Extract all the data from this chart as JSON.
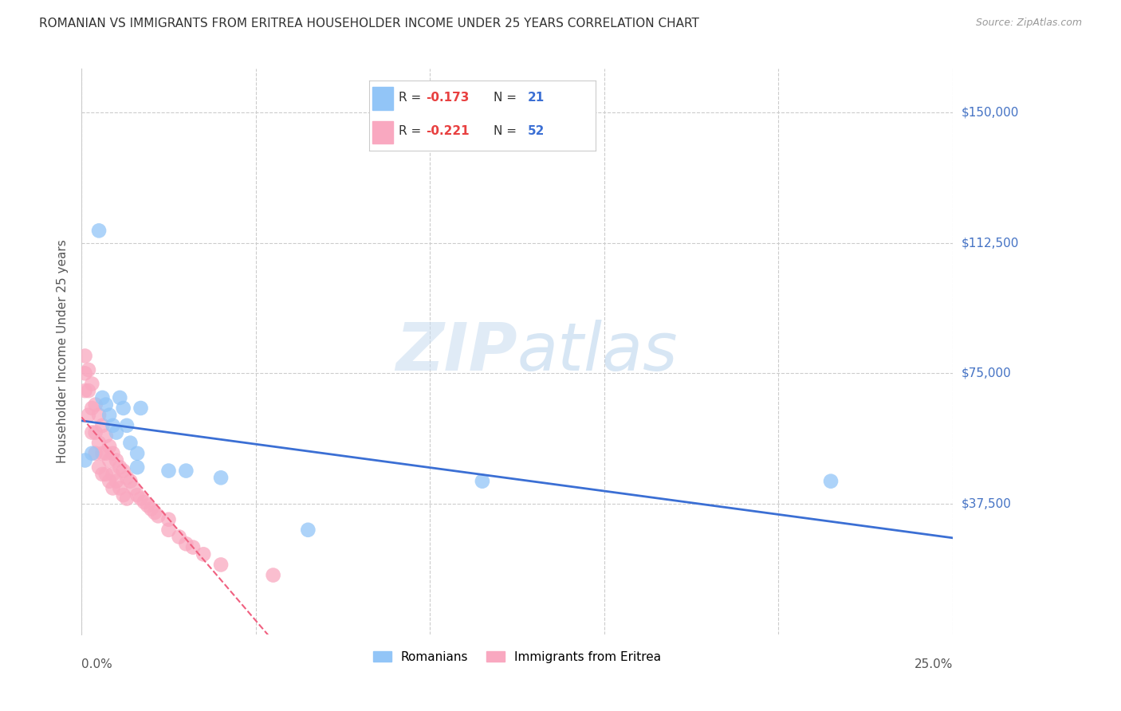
{
  "title": "ROMANIAN VS IMMIGRANTS FROM ERITREA HOUSEHOLDER INCOME UNDER 25 YEARS CORRELATION CHART",
  "source": "Source: ZipAtlas.com",
  "ylabel": "Householder Income Under 25 years",
  "ytick_labels": [
    "$150,000",
    "$112,500",
    "$75,000",
    "$37,500"
  ],
  "ytick_values": [
    150000,
    112500,
    75000,
    37500
  ],
  "ylim": [
    0,
    162500
  ],
  "xlim": [
    0.0,
    0.25
  ],
  "legend_label_romanian": "Romanians",
  "legend_label_eritrea": "Immigrants from Eritrea",
  "color_romanian": "#92C5F7",
  "color_eritrea": "#F9A8C0",
  "color_trendline_romanian": "#3B6FD4",
  "color_trendline_eritrea": "#F06080",
  "background_color": "#FFFFFF",
  "romanian_x": [
    0.001,
    0.003,
    0.005,
    0.006,
    0.007,
    0.008,
    0.009,
    0.01,
    0.011,
    0.012,
    0.013,
    0.014,
    0.016,
    0.016,
    0.017,
    0.025,
    0.03,
    0.04,
    0.065,
    0.115,
    0.215
  ],
  "romanian_y": [
    50000,
    52000,
    116000,
    68000,
    66000,
    63000,
    60000,
    58000,
    68000,
    65000,
    60000,
    55000,
    52000,
    48000,
    65000,
    47000,
    47000,
    45000,
    30000,
    44000,
    44000
  ],
  "eritrea_x": [
    0.001,
    0.001,
    0.001,
    0.002,
    0.002,
    0.002,
    0.003,
    0.003,
    0.003,
    0.004,
    0.004,
    0.004,
    0.005,
    0.005,
    0.005,
    0.006,
    0.006,
    0.006,
    0.007,
    0.007,
    0.007,
    0.008,
    0.008,
    0.008,
    0.009,
    0.009,
    0.009,
    0.01,
    0.01,
    0.011,
    0.011,
    0.012,
    0.012,
    0.013,
    0.013,
    0.014,
    0.015,
    0.016,
    0.017,
    0.018,
    0.019,
    0.02,
    0.021,
    0.022,
    0.025,
    0.025,
    0.028,
    0.03,
    0.032,
    0.035,
    0.04,
    0.055
  ],
  "eritrea_y": [
    80000,
    75000,
    70000,
    76000,
    70000,
    63000,
    72000,
    65000,
    58000,
    66000,
    58000,
    52000,
    63000,
    55000,
    48000,
    60000,
    52000,
    46000,
    57000,
    52000,
    46000,
    54000,
    50000,
    44000,
    52000,
    46000,
    42000,
    50000,
    44000,
    48000,
    42000,
    47000,
    40000,
    45000,
    39000,
    44000,
    42000,
    40000,
    39000,
    38000,
    37000,
    36000,
    35000,
    34000,
    33000,
    30000,
    28000,
    26000,
    25000,
    23000,
    20000,
    17000
  ]
}
